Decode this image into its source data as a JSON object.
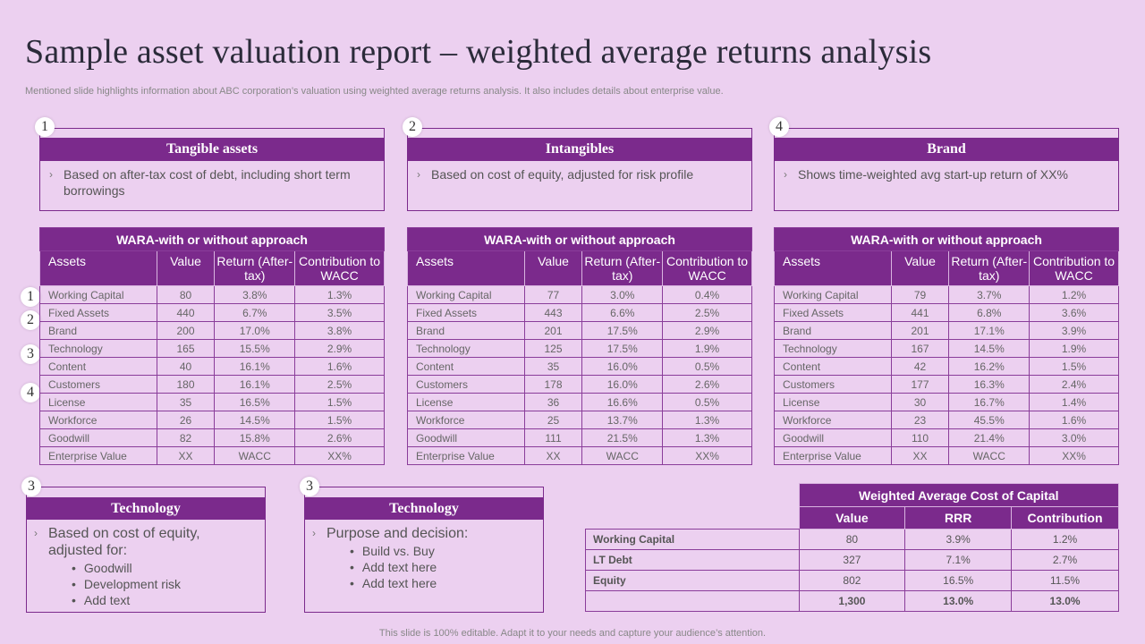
{
  "title": "Sample asset valuation report – weighted average returns analysis",
  "subtitle": "Mentioned slide highlights information about ABC corporation’s valuation using weighted average returns analysis. It also includes details about enterprise value.",
  "footer": "This slide is 100% editable. Adapt it to your needs and capture your audience’s attention.",
  "colors": {
    "accent": "#7b2a8c",
    "background": "#ecd0f0"
  },
  "top_cards": [
    {
      "badge": "1",
      "title": "Tangible assets",
      "text": "Based on after-tax cost of debt, including short term borrowings"
    },
    {
      "badge": "2",
      "title": "Intangibles",
      "text": "Based on cost of equity, adjusted for risk profile"
    },
    {
      "badge": "4",
      "title": "Brand",
      "text": "Shows time-weighted avg start-up return of XX%"
    }
  ],
  "side_badges": [
    "1",
    "2",
    "3",
    "4"
  ],
  "chevron": "›",
  "wara_tables": [
    {
      "title": "WARA-with  or without approach",
      "headers": [
        "Assets",
        "Value",
        "Return (After-tax)",
        "Contribution to WACC"
      ],
      "rows": [
        [
          "Working Capital",
          "80",
          "3.8%",
          "1.3%"
        ],
        [
          "Fixed Assets",
          "440",
          "6.7%",
          "3.5%"
        ],
        [
          "Brand",
          "200",
          "17.0%",
          "3.8%"
        ],
        [
          "Technology",
          "165",
          "15.5%",
          "2.9%"
        ],
        [
          "Content",
          "40",
          "16.1%",
          "1.6%"
        ],
        [
          "Customers",
          "180",
          "16.1%",
          "2.5%"
        ],
        [
          "License",
          "35",
          "16.5%",
          "1.5%"
        ],
        [
          "Workforce",
          "26",
          "14.5%",
          "1.5%"
        ],
        [
          "Goodwill",
          "82",
          "15.8%",
          "2.6%"
        ],
        [
          "Enterprise Value",
          "XX",
          "WACC",
          "XX%"
        ]
      ]
    },
    {
      "title": "WARA-with  or without approach",
      "headers": [
        "Assets",
        "Value",
        "Return (After-tax)",
        "Contribution to WACC"
      ],
      "rows": [
        [
          "Working Capital",
          "77",
          "3.0%",
          "0.4%"
        ],
        [
          "Fixed Assets",
          "443",
          "6.6%",
          "2.5%"
        ],
        [
          "Brand",
          "201",
          "17.5%",
          "2.9%"
        ],
        [
          "Technology",
          "125",
          "17.5%",
          "1.9%"
        ],
        [
          "Content",
          "35",
          "16.0%",
          "0.5%"
        ],
        [
          "Customers",
          "178",
          "16.0%",
          "2.6%"
        ],
        [
          "License",
          "36",
          "16.6%",
          "0.5%"
        ],
        [
          "Workforce",
          "25",
          "13.7%",
          "1.3%"
        ],
        [
          "Goodwill",
          "111",
          "21.5%",
          "1.3%"
        ],
        [
          "Enterprise Value",
          "XX",
          "WACC",
          "XX%"
        ]
      ]
    },
    {
      "title": "WARA-with  or without approach",
      "headers": [
        "Assets",
        "Value",
        "Return (After-tax)",
        "Contribution to WACC"
      ],
      "rows": [
        [
          "Working Capital",
          "79",
          "3.7%",
          "1.2%"
        ],
        [
          "Fixed Assets",
          "441",
          "6.8%",
          "3.6%"
        ],
        [
          "Brand",
          "201",
          "17.1%",
          "3.9%"
        ],
        [
          "Technology",
          "167",
          "14.5%",
          "1.9%"
        ],
        [
          "Content",
          "42",
          "16.2%",
          "1.5%"
        ],
        [
          "Customers",
          "177",
          "16.3%",
          "2.4%"
        ],
        [
          "License",
          "30",
          "16.7%",
          "1.4%"
        ],
        [
          "Workforce",
          "23",
          "45.5%",
          "1.6%"
        ],
        [
          "Goodwill",
          "110",
          "21.4%",
          "3.0%"
        ],
        [
          "Enterprise Value",
          "XX",
          "WACC",
          "XX%"
        ]
      ]
    }
  ],
  "bottom_cards": [
    {
      "badge": "3",
      "title": "Technology",
      "text": "Based on cost of equity, adjusted for:",
      "bullets": [
        "Goodwill",
        "Development risk",
        "Add text"
      ]
    },
    {
      "badge": "3",
      "title": "Technology",
      "text": "Purpose and decision:",
      "bullets": [
        "Build vs. Buy",
        "Add text here",
        "Add text here"
      ]
    }
  ],
  "wacc": {
    "title": "Weighted Average Cost of Capital",
    "headers": [
      "Value",
      "RRR",
      "Contribution"
    ],
    "rows": [
      [
        "Working Capital",
        "80",
        "3.9%",
        "1.2%"
      ],
      [
        "LT Debt",
        "327",
        "7.1%",
        "2.7%"
      ],
      [
        "Equity",
        "802",
        "16.5%",
        "11.5%"
      ],
      [
        "",
        "1,300",
        "13.0%",
        "13.0%"
      ]
    ]
  }
}
